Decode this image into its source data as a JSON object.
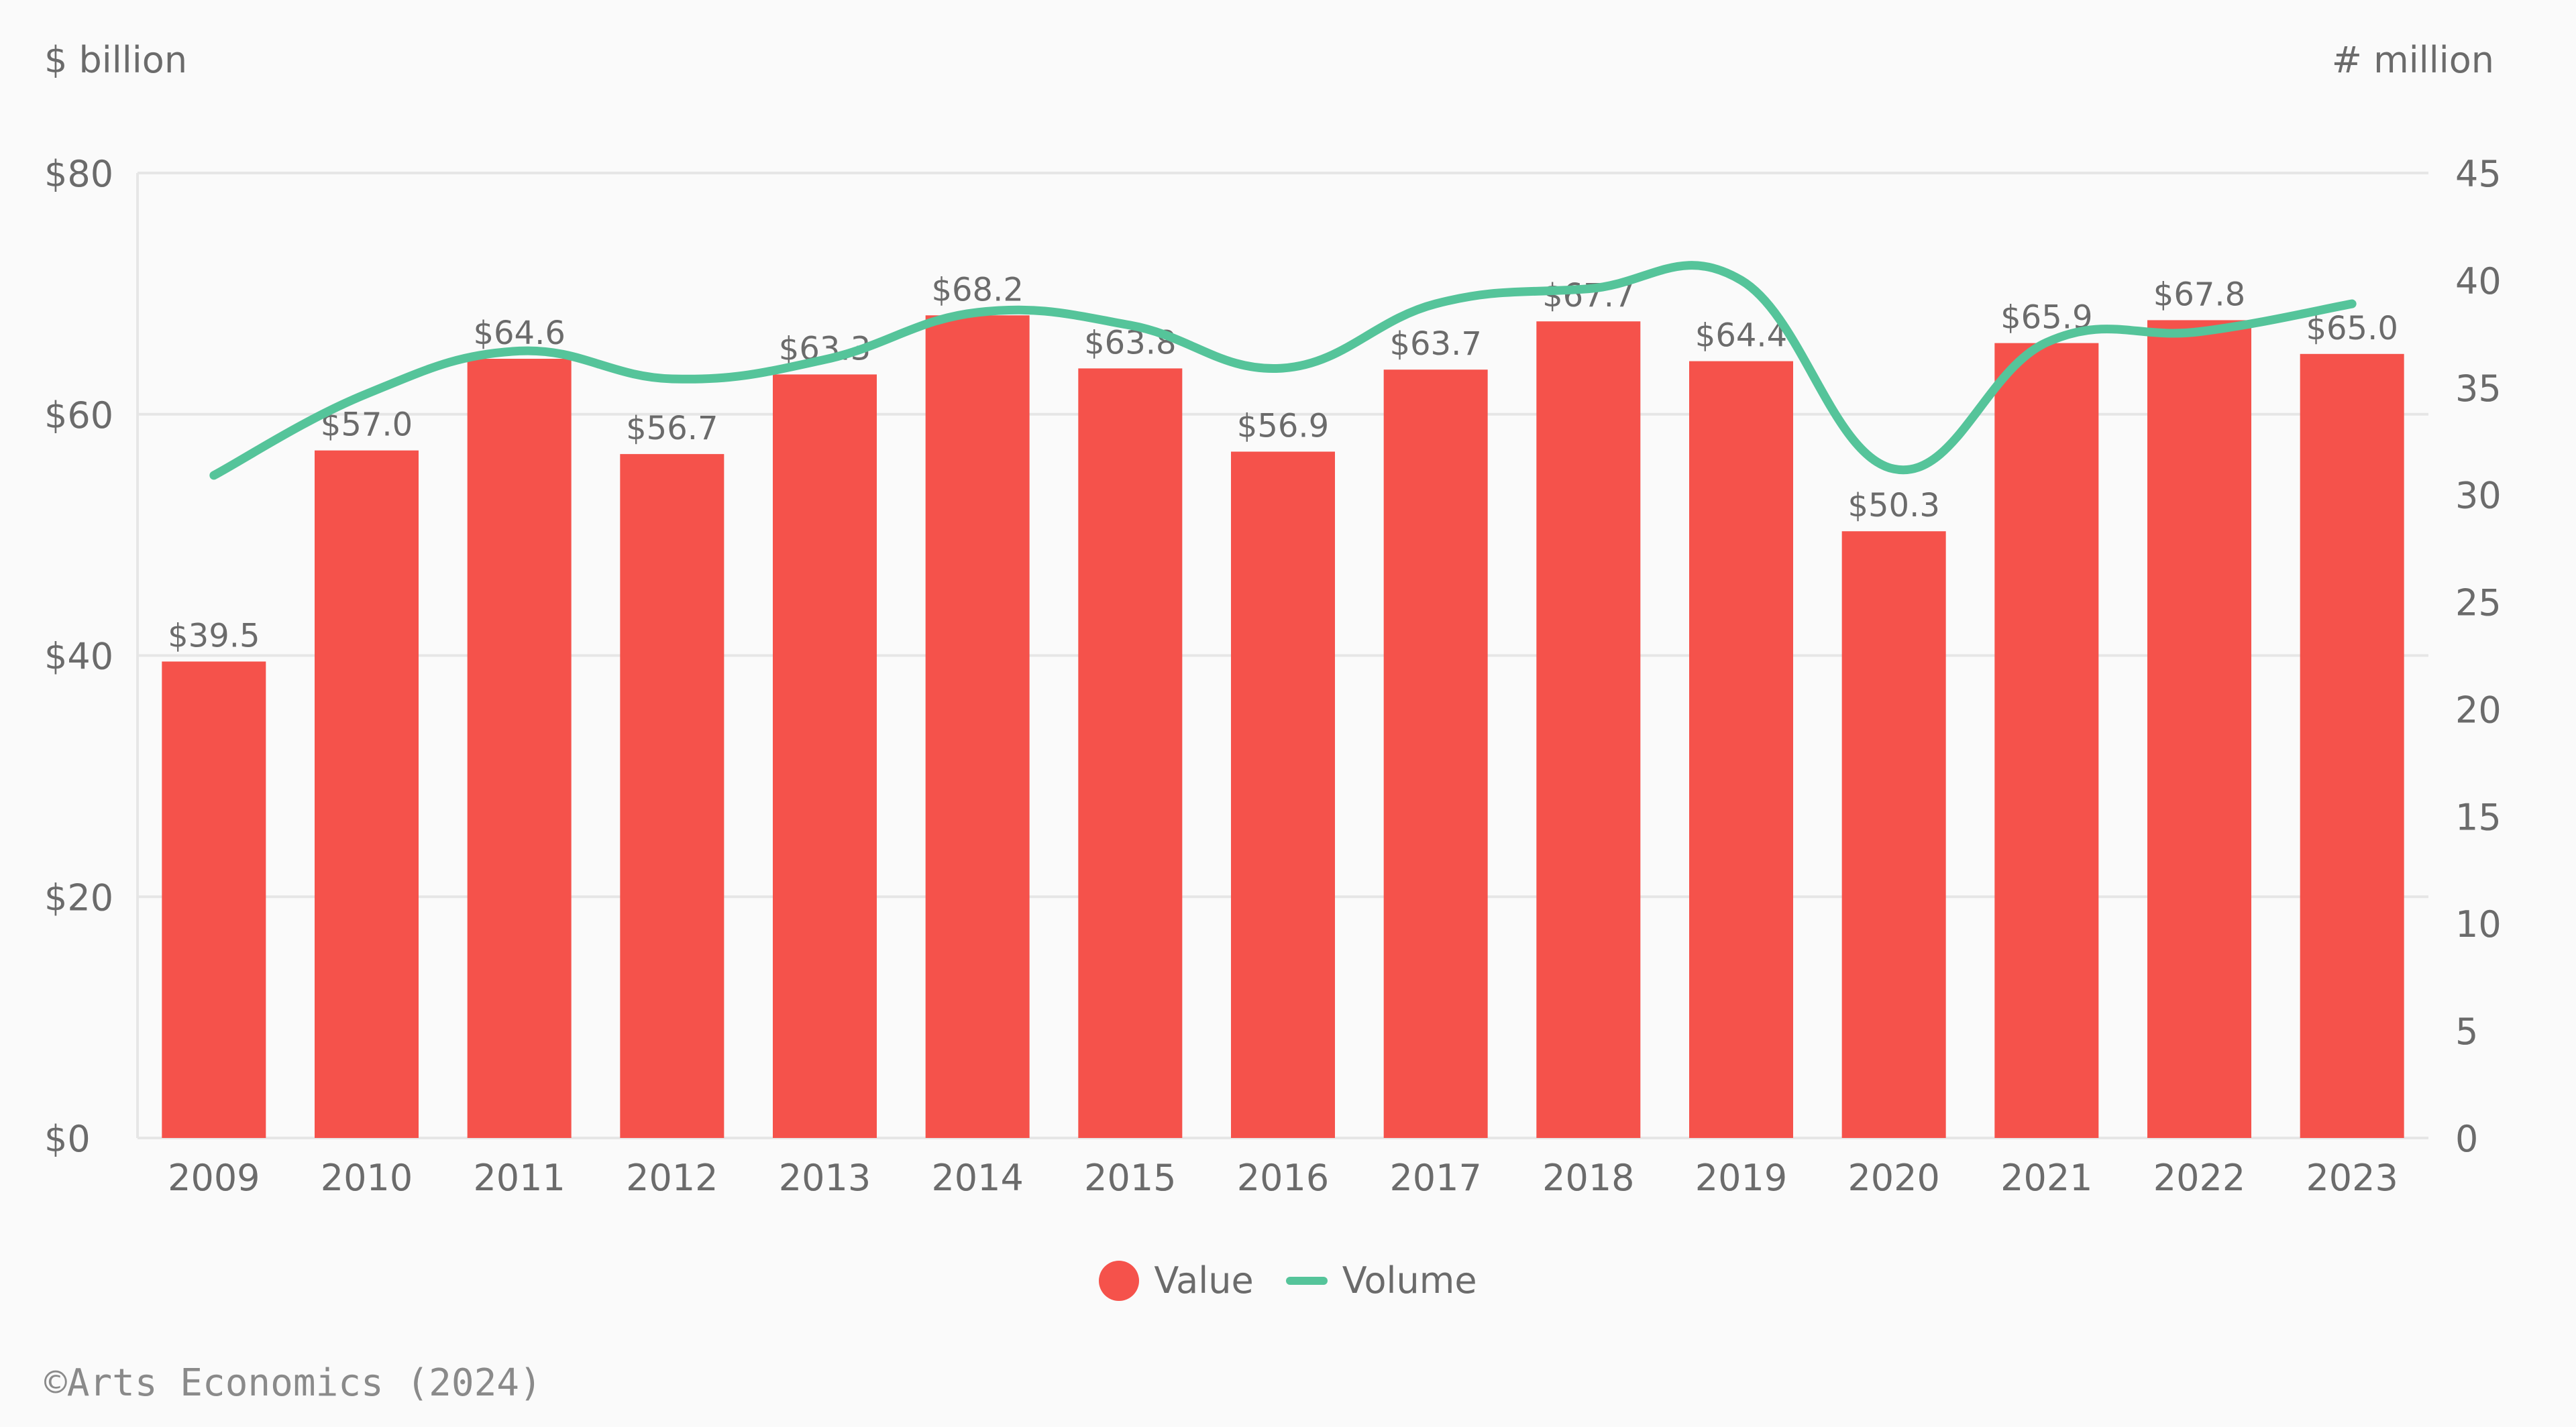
{
  "units": {
    "left": "$ billion",
    "right": "# million"
  },
  "credit": "©Arts Economics (2024)",
  "colors": {
    "bar": "#f5524b",
    "line": "#55c49a",
    "grid": "#e6e6e6",
    "text": "#6b6b6b"
  },
  "legend": {
    "value_label": "Value",
    "volume_label": "Volume"
  },
  "chart_data": {
    "type": "bar",
    "categories": [
      "2009",
      "2010",
      "2011",
      "2012",
      "2013",
      "2014",
      "2015",
      "2016",
      "2017",
      "2018",
      "2019",
      "2020",
      "2021",
      "2022",
      "2023"
    ],
    "series": [
      {
        "name": "Value",
        "type": "bar",
        "axis": "left",
        "values": [
          39.5,
          57.0,
          64.6,
          56.7,
          63.3,
          68.2,
          63.8,
          56.9,
          63.7,
          67.7,
          64.4,
          50.3,
          65.9,
          67.8,
          65.0
        ],
        "labels": [
          "$39.5",
          "$57.0",
          "$64.6",
          "$56.7",
          "$63.3",
          "$68.2",
          "$63.8",
          "$56.9",
          "$63.7",
          "$67.7",
          "$64.4",
          "$50.3",
          "$65.9",
          "$67.8",
          "$65.0"
        ]
      },
      {
        "name": "Volume",
        "type": "line",
        "axis": "right",
        "values": [
          30.9,
          34.7,
          36.7,
          35.4,
          36.3,
          38.5,
          37.9,
          35.9,
          38.9,
          39.6,
          40.0,
          31.2,
          37.1,
          37.6,
          38.9
        ]
      }
    ],
    "y_left": {
      "ylim": [
        0,
        80
      ],
      "ticks": [
        0,
        20,
        40,
        60,
        80
      ],
      "tick_labels": [
        "$0",
        "$20",
        "$40",
        "$60",
        "$80"
      ]
    },
    "y_right": {
      "ylim": [
        0,
        45
      ],
      "ticks": [
        0,
        5,
        10,
        15,
        20,
        25,
        30,
        35,
        40,
        45
      ],
      "tick_labels": [
        "0",
        "5",
        "10",
        "15",
        "20",
        "25",
        "30",
        "35",
        "40",
        "45"
      ]
    },
    "grid": true,
    "legend_position": "bottom-center"
  }
}
